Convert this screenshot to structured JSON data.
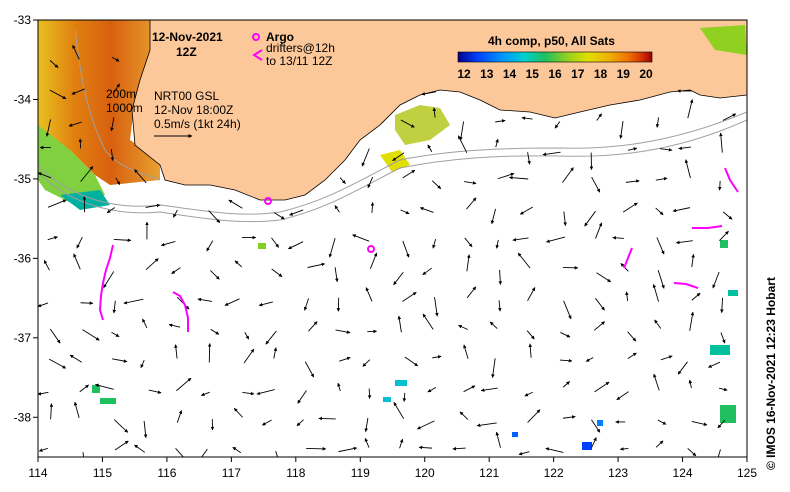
{
  "title": {
    "date": "12-Nov-2021",
    "time": "12Z"
  },
  "legend": {
    "argo_label": "Argo",
    "drifters_label_1": "drifters@12h",
    "drifters_label_2": "to 13/11 12Z",
    "argo_color": "#ff00ff",
    "drifter_color": "#ff00ff"
  },
  "isobaths": {
    "label_200": "200m",
    "label_1000": "1000m"
  },
  "currents_info": {
    "line1": "NRT00 GSL",
    "line2": "12-Nov 18:00Z",
    "line3": "0.5m/s (1kt 24h)"
  },
  "colorbar": {
    "title": "4h comp, p50, All Sats",
    "ticks": [
      "12",
      "13",
      "14",
      "15",
      "16",
      "17",
      "18",
      "19",
      "20"
    ],
    "colors": [
      "#00008b",
      "#0040ff",
      "#0090ff",
      "#00d0d0",
      "#20c060",
      "#90d020",
      "#e0e000",
      "#f0b000",
      "#f07000",
      "#d03000",
      "#a00000"
    ]
  },
  "axes": {
    "x_ticks": [
      "114",
      "115",
      "116",
      "117",
      "118",
      "119",
      "120",
      "121",
      "122",
      "123",
      "124",
      "125"
    ],
    "y_ticks": [
      "-33",
      "-34",
      "-35",
      "-36",
      "-37",
      "-38"
    ],
    "lon_range": [
      114,
      125
    ],
    "lat_range": [
      -38.5,
      -33
    ]
  },
  "colors": {
    "land": "#fcc89a",
    "ocean": "#ffffff",
    "arrow": "#000000"
  },
  "credit": "© IMOS 16-Nov-2021 12:23 Hobart"
}
